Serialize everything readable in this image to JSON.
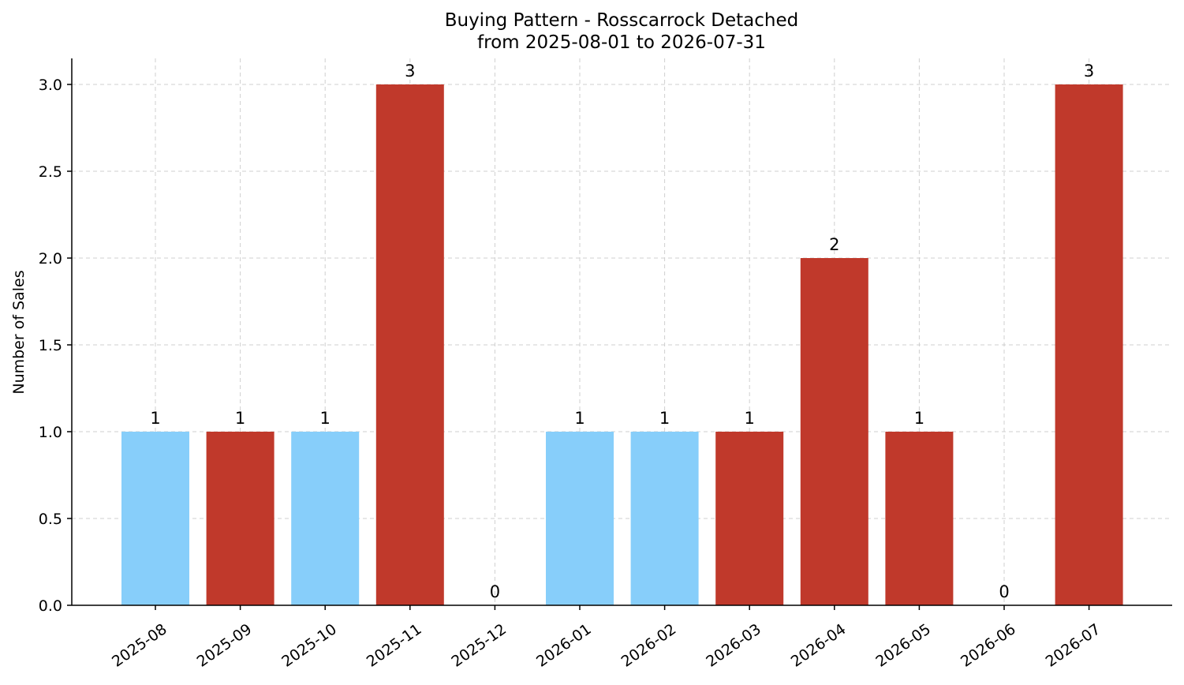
{
  "chart_data": {
    "type": "bar",
    "title": "Buying Pattern - Rosscarrock Detached",
    "subtitle": "from 2025-08-01 to 2026-07-31",
    "xlabel": "",
    "ylabel": "Number of Sales",
    "categories": [
      "2025-08",
      "2025-09",
      "2025-10",
      "2025-11",
      "2025-12",
      "2026-01",
      "2026-02",
      "2026-03",
      "2026-04",
      "2026-05",
      "2026-06",
      "2026-07"
    ],
    "values": [
      1,
      1,
      1,
      3,
      0,
      1,
      1,
      1,
      2,
      1,
      0,
      3
    ],
    "value_labels": [
      "1",
      "1",
      "1",
      "3",
      "0",
      "1",
      "1",
      "1",
      "2",
      "1",
      "0",
      "3"
    ],
    "bar_colors": [
      "#87cefa",
      "#c0392b",
      "#87cefa",
      "#c0392b",
      "#c0392b",
      "#87cefa",
      "#87cefa",
      "#c0392b",
      "#c0392b",
      "#c0392b",
      "#c0392b",
      "#c0392b"
    ],
    "ylim": [
      0,
      3.15
    ],
    "yticks": [
      0.0,
      0.5,
      1.0,
      1.5,
      2.0,
      2.5,
      3.0
    ],
    "ytick_labels": [
      "0.0",
      "0.5",
      "1.0",
      "1.5",
      "2.0",
      "2.5",
      "3.0"
    ],
    "grid": true,
    "legend": null
  }
}
